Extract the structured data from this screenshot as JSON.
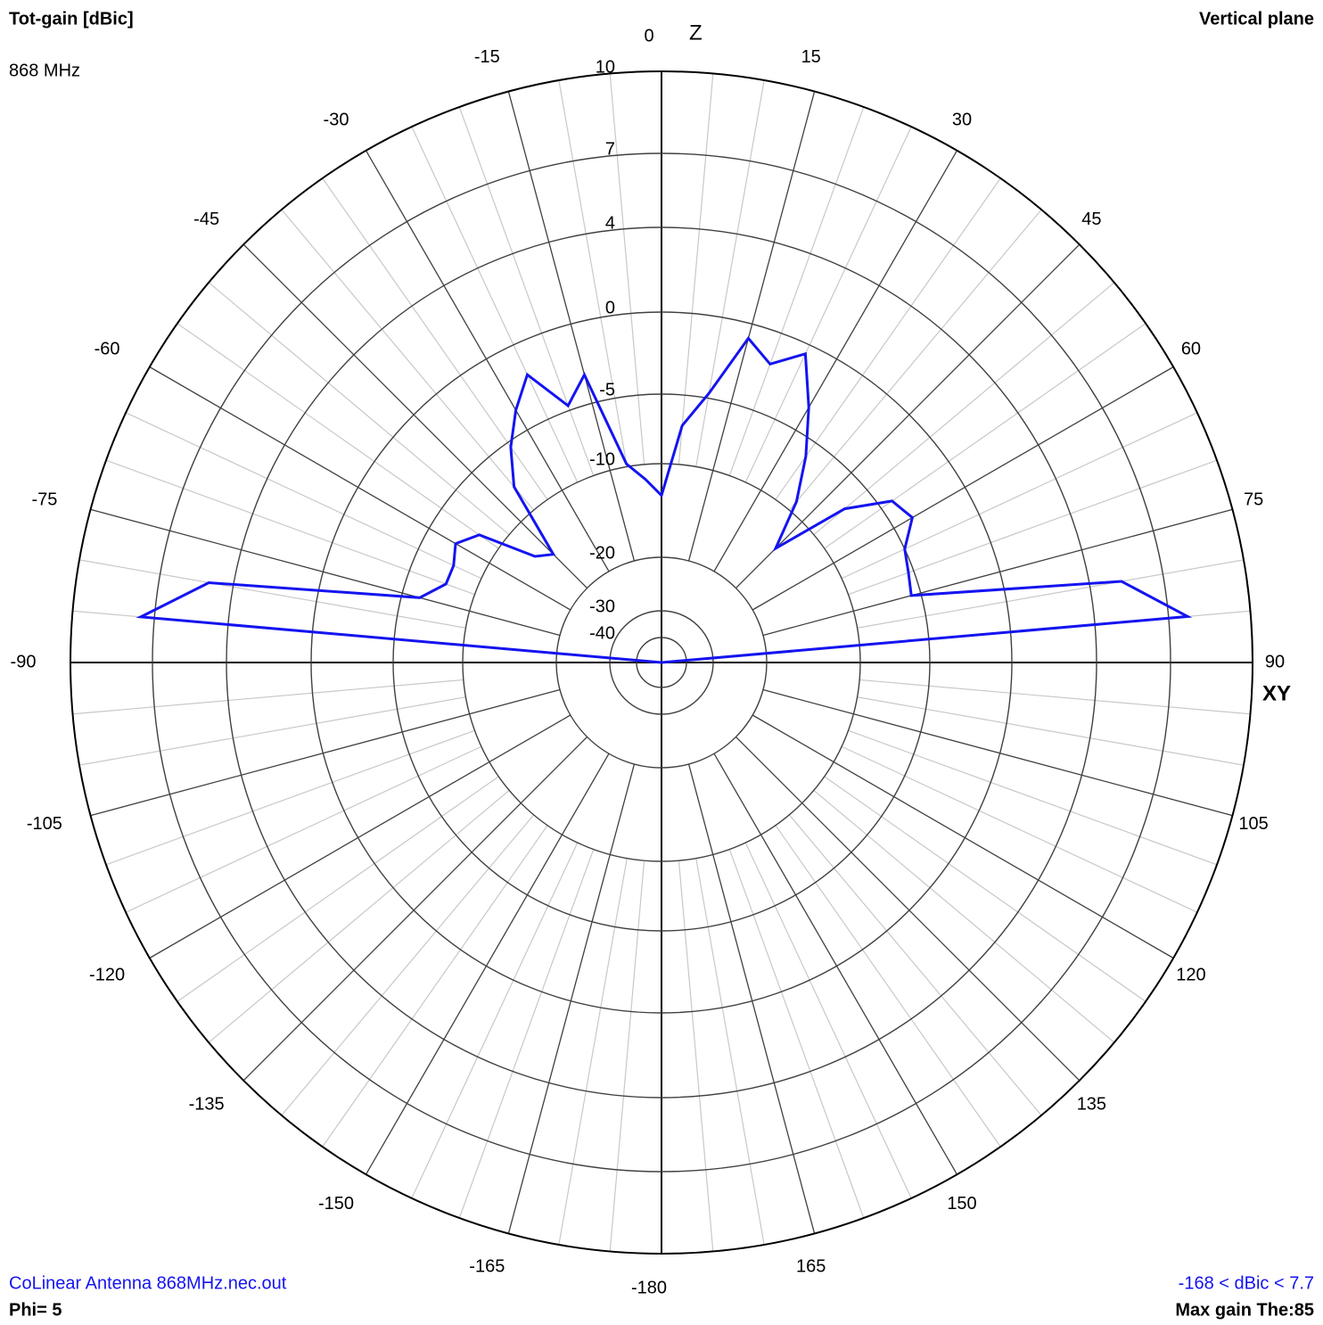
{
  "chart_data": {
    "type": "polar",
    "title": "Tot-gain [dBic]",
    "subtitle": "868 MHz",
    "plane": "Vertical plane",
    "file": "CoLinear Antenna 868MHz.nec.out",
    "phi": "Phi= 5",
    "range_text": "-168 < dBic < 7.7",
    "max_text": "Max gain The:85",
    "axis_top": "Z",
    "axis_right": "XY",
    "rlim": [
      -168,
      10
    ],
    "rticks": [
      -40,
      -30,
      -20,
      -10,
      -5,
      0,
      4,
      7,
      10
    ],
    "angle_ticks": [
      -180,
      -165,
      -150,
      -135,
      -120,
      -105,
      -90,
      -75,
      -60,
      -45,
      -30,
      -15,
      0,
      15,
      30,
      45,
      60,
      75,
      90,
      105,
      120,
      135,
      150,
      165
    ],
    "series": [
      {
        "color": "#1414f0",
        "theta": [
          -90,
          -85,
          -80,
          -75,
          -70,
          -65,
          -60,
          -55,
          -50,
          -45,
          -40,
          -35,
          -30,
          -25,
          -20,
          -15,
          -10,
          -5,
          0,
          5,
          10,
          15,
          20,
          25,
          30,
          35,
          40,
          45,
          50,
          55,
          60,
          65,
          70,
          75,
          80,
          85,
          90
        ],
        "values": [
          -168,
          7.5,
          5.0,
          -6.3,
          -7.8,
          -7.8,
          -7.2,
          -8.3,
          -13.6,
          -14.9,
          -7.8,
          -5.4,
          -3.6,
          -2.0,
          -4.7,
          -3.2,
          -9.8,
          -11.6,
          -13.4,
          -7.2,
          -4.7,
          -0.9,
          -2.0,
          -0.6,
          -3.4,
          -6.2,
          -9.2,
          -14.0,
          -7.1,
          -4.2,
          -3.7,
          -5.0,
          -5.4,
          -5.7,
          5.3,
          7.7,
          -168
        ]
      }
    ]
  }
}
